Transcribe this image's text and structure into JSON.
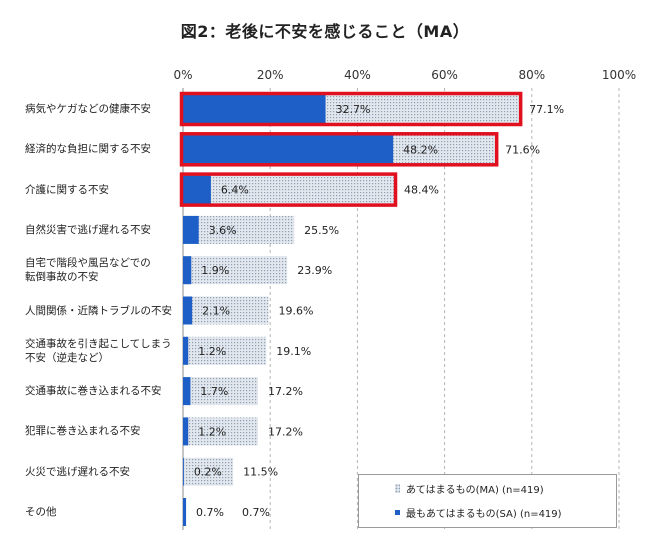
{
  "chart_data": {
    "type": "bar",
    "orientation": "horizontal",
    "title": "図2：老後に不安を感じること（MA）",
    "categories": [
      "病気やケガなどの健康不安",
      "経済的な負担に関する不安",
      "介護に関する不安",
      "自然災害で逃げ遅れる不安",
      "自宅で階段や風呂などでの\n転倒事故の不安",
      "人間関係・近隣トラブルの不安",
      "交通事故を引き起こしてしまう\n不安（逆走など）",
      "交通事故に巻き込まれる不安",
      "犯罪に巻き込まれる不安",
      "火災で逃げ遅れる不安",
      "その他"
    ],
    "series": [
      {
        "name": "あてはまるもの(MA) (n=419)",
        "values": [
          77.1,
          71.6,
          48.4,
          25.5,
          23.9,
          19.6,
          19.1,
          17.2,
          17.2,
          11.5,
          0.7
        ],
        "labels": [
          "77.1%",
          "71.6%",
          "48.4%",
          "25.5%",
          "23.9%",
          "19.6%",
          "19.1%",
          "17.2%",
          "17.2%",
          "11.5%",
          "0.7%"
        ]
      },
      {
        "name": "最もあてはまるもの(SA) (n=419)",
        "values": [
          32.7,
          48.2,
          6.4,
          3.6,
          1.9,
          2.1,
          1.2,
          1.7,
          1.2,
          0.2,
          0.7
        ],
        "labels": [
          "32.7%",
          "48.2%",
          "6.4%",
          "3.6%",
          "1.9%",
          "2.1%",
          "1.2%",
          "1.7%",
          "1.2%",
          "0.2%",
          "0.7%"
        ]
      }
    ],
    "xlim": [
      0,
      100
    ],
    "xticks": [
      0,
      20,
      40,
      60,
      80,
      100
    ],
    "xtick_labels": [
      "0%",
      "20%",
      "40%",
      "60%",
      "80%",
      "100%"
    ],
    "xaxis_position": "top",
    "grid": true,
    "legend": "bottom-right",
    "highlighted": [
      0,
      1,
      2
    ],
    "colors": {
      "sa": "#1d5fc6",
      "ma_fill": "#e2e7ee",
      "ma_dot": "#8e9fb3",
      "highlight": "#e0101f",
      "grid": "#b5b5b5",
      "axis": "#8c8c8c"
    }
  }
}
